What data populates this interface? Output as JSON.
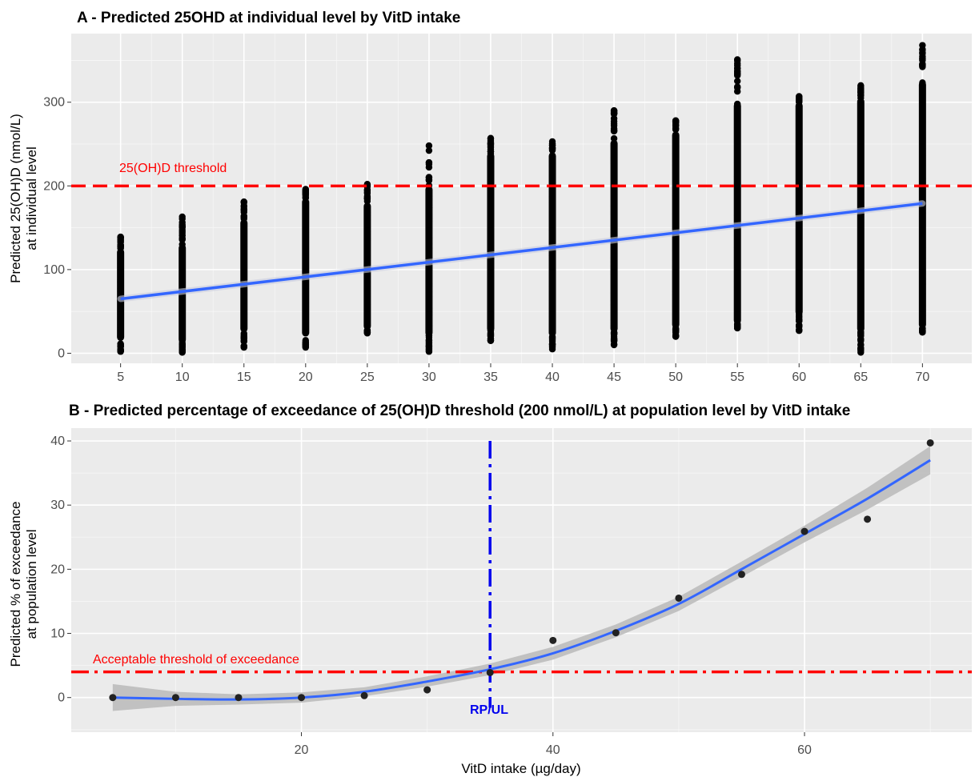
{
  "colors": {
    "panel_bg": "#ebebeb",
    "grid_major": "#ffffff",
    "points": "#000000",
    "fit_line": "#3366ff",
    "ribbon": "#bdbdbd",
    "threshold": "#ff0000",
    "rp_line": "#0000ee"
  },
  "chart_data": [
    {
      "type": "scatter",
      "title": "A -  Predicted 25OHD at individual level by VitD intake",
      "xlabel": "",
      "ylabel": [
        "Predicted 25(OH)D (nmol/L)",
        "at individual level"
      ],
      "xlim": [
        1,
        74
      ],
      "ylim": [
        -12,
        382
      ],
      "x_ticks": [
        5,
        10,
        15,
        20,
        25,
        30,
        35,
        40,
        45,
        50,
        55,
        60,
        65,
        70
      ],
      "y_ticks": [
        0,
        100,
        200,
        300
      ],
      "grid": true,
      "point_columns": [
        {
          "x": 5,
          "min": 2,
          "max": 139,
          "dense_low": 15,
          "dense_high": 125
        },
        {
          "x": 10,
          "min": 1,
          "max": 163,
          "dense_low": 12,
          "dense_high": 130
        },
        {
          "x": 15,
          "min": 7,
          "max": 181,
          "dense_low": 25,
          "dense_high": 160
        },
        {
          "x": 20,
          "min": 7,
          "max": 196,
          "dense_low": 20,
          "dense_high": 185
        },
        {
          "x": 25,
          "min": 24,
          "max": 202,
          "dense_low": 28,
          "dense_high": 180
        },
        {
          "x": 30,
          "min": 2,
          "max": 248,
          "dense_low": 20,
          "dense_high": 200
        },
        {
          "x": 35,
          "min": 15,
          "max": 257,
          "dense_low": 25,
          "dense_high": 240
        },
        {
          "x": 40,
          "min": 5,
          "max": 253,
          "dense_low": 20,
          "dense_high": 240
        },
        {
          "x": 45,
          "min": 10,
          "max": 290,
          "dense_low": 25,
          "dense_high": 255
        },
        {
          "x": 50,
          "min": 20,
          "max": 278,
          "dense_low": 30,
          "dense_high": 265
        },
        {
          "x": 55,
          "min": 30,
          "max": 351,
          "dense_low": 35,
          "dense_high": 300
        },
        {
          "x": 60,
          "min": 27,
          "max": 307,
          "dense_low": 45,
          "dense_high": 300
        },
        {
          "x": 65,
          "min": 1,
          "max": 320,
          "dense_low": 25,
          "dense_high": 305
        },
        {
          "x": 70,
          "min": 25,
          "max": 368,
          "dense_low": 30,
          "dense_high": 325
        }
      ],
      "fit": {
        "x": [
          5,
          70
        ],
        "y": [
          65,
          179
        ]
      },
      "threshold": {
        "y": 200,
        "label": "25(OH)D threshold"
      }
    },
    {
      "type": "scatter",
      "title": "B -  Predicted percentage of exceedance of 25(OH)D threshold (200 nmol/L) at population level by VitD intake",
      "xlabel": "VitD intake (µg/day)",
      "ylabel": [
        "Predicted % of exceedance",
        "at population level"
      ],
      "xlim": [
        1.7,
        73.3
      ],
      "ylim": [
        -5.4,
        42
      ],
      "x_ticks": [
        20,
        40,
        60
      ],
      "y_ticks": [
        0,
        10,
        20,
        30,
        40
      ],
      "grid": true,
      "points": {
        "x": [
          5,
          10,
          15,
          20,
          25,
          30,
          35,
          40,
          45,
          50,
          55,
          60,
          65,
          70
        ],
        "y": [
          0,
          0,
          0,
          0,
          0.3,
          1.2,
          3.9,
          8.9,
          10.1,
          15.5,
          19.2,
          25.9,
          27.8,
          39.7
        ]
      },
      "smooth": {
        "x": [
          5,
          10,
          15,
          20,
          25,
          30,
          35,
          40,
          45,
          50,
          55,
          60,
          65,
          70
        ],
        "y": [
          0,
          -0.2,
          -0.3,
          0,
          0.9,
          2.5,
          4.4,
          6.9,
          10.4,
          14.6,
          20.0,
          25.5,
          31.0,
          37.0
        ],
        "lower": [
          -2.1,
          -1.3,
          -1.1,
          -0.8,
          0.2,
          1.7,
          3.5,
          5.9,
          9.4,
          13.5,
          18.8,
          24.2,
          29.3,
          34.8
        ],
        "upper": [
          2.1,
          0.9,
          0.5,
          0.8,
          1.6,
          3.3,
          5.3,
          7.9,
          11.4,
          15.7,
          21.2,
          26.8,
          32.7,
          39.2
        ]
      },
      "threshold": {
        "y": 4,
        "label": "Acceptable threshold of exceedance"
      },
      "reference_line": {
        "x": 35,
        "label": "RP/UL"
      }
    }
  ]
}
